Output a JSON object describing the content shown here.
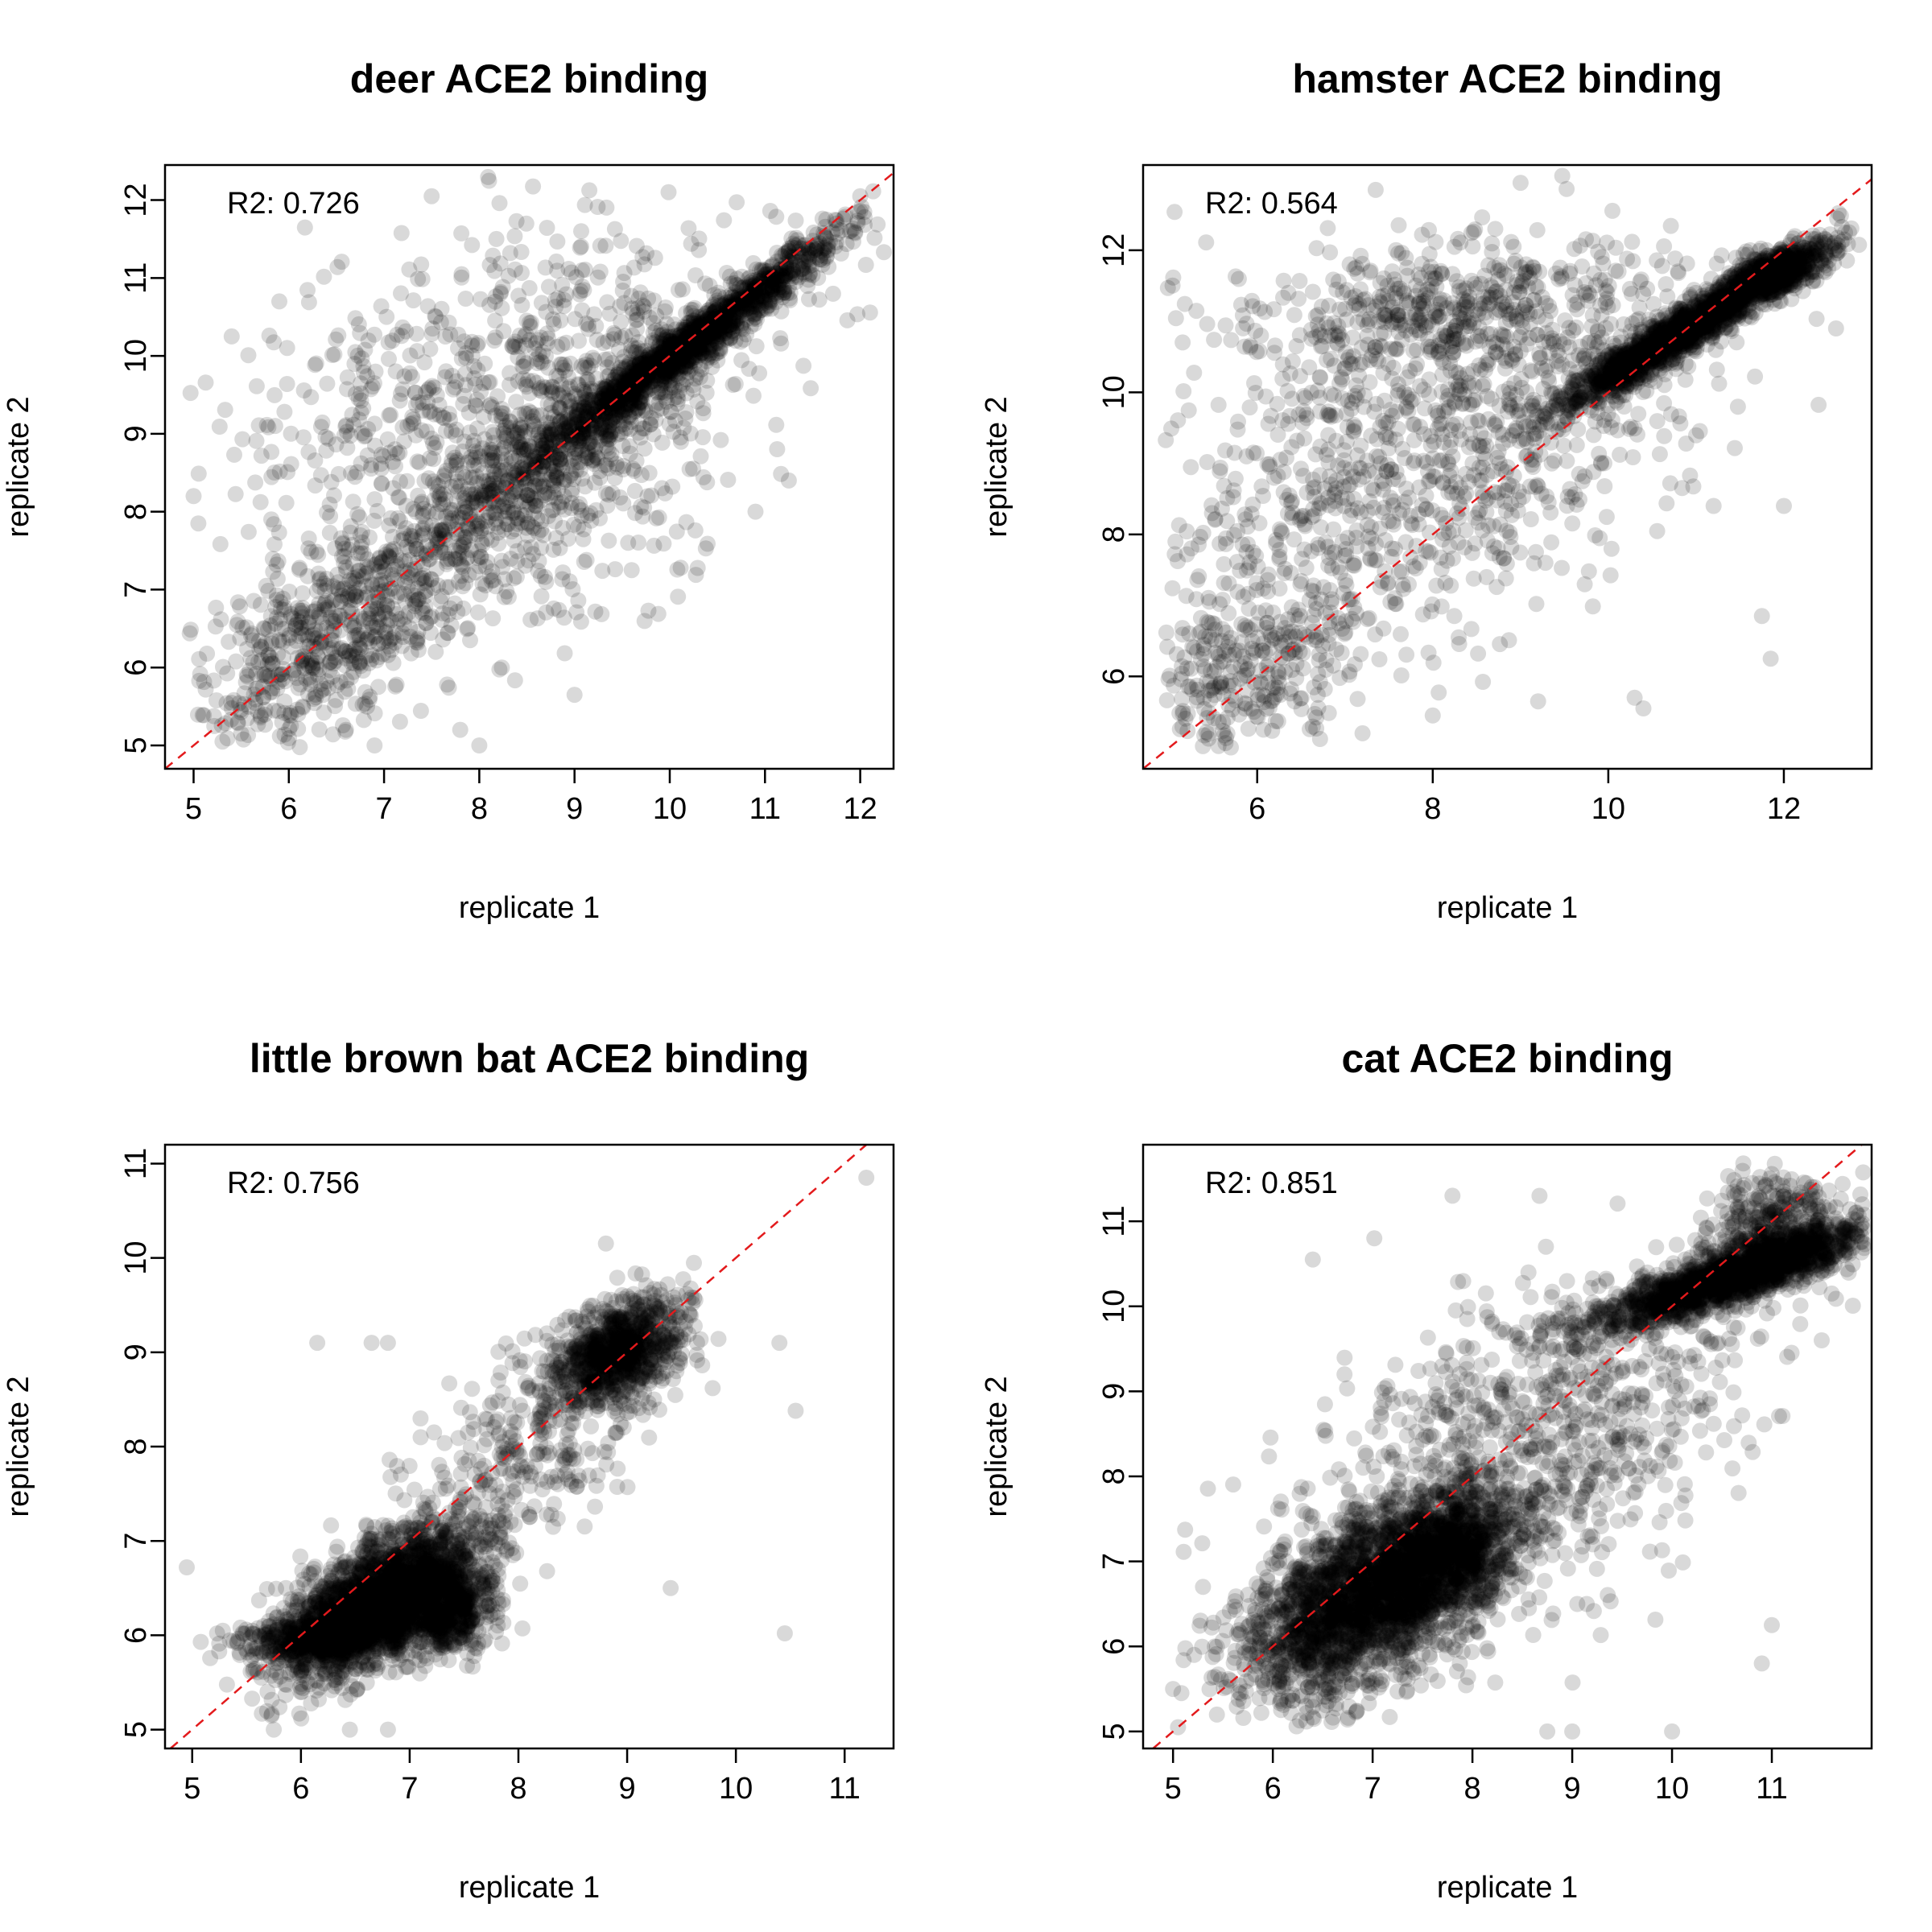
{
  "chart_data": [
    {
      "type": "scatter",
      "title": "deer ACE2 binding",
      "xlabel": "replicate 1",
      "ylabel": "replicate 2",
      "annotation": "R2: 0.726",
      "xlim": [
        4.7,
        12.35
      ],
      "ylim": [
        4.7,
        12.45
      ],
      "xticks": [
        5,
        6,
        7,
        8,
        9,
        10,
        11,
        12
      ],
      "yticks": [
        5,
        6,
        7,
        8,
        9,
        10,
        11,
        12
      ],
      "reference_line": "y = x",
      "grid": false,
      "r2": 0.726,
      "clusters": [
        {
          "cx": 10.2,
          "cy": 10.15,
          "sd_along": 1.05,
          "sd_perp": 0.12,
          "angle": 0.74,
          "n": 1500
        },
        {
          "cx": 8.6,
          "cy": 8.6,
          "sd_along": 1.3,
          "sd_perp": 0.35,
          "angle": 0.72,
          "n": 700
        },
        {
          "cx": 6.3,
          "cy": 6.3,
          "sd_along": 0.8,
          "sd_perp": 0.45,
          "angle": 0.85,
          "n": 500
        },
        {
          "cx": 8.2,
          "cy": 9.6,
          "sd_along": 1.6,
          "sd_perp": 0.85,
          "angle": 0.55,
          "n": 700
        },
        {
          "cx": 8.5,
          "cy": 7.5,
          "sd_along": 1.2,
          "sd_perp": 0.6,
          "angle": 0.6,
          "n": 250
        }
      ],
      "outliers": [
        [
          5.0,
          8.2
        ],
        [
          5.05,
          7.85
        ],
        [
          5.4,
          10.25
        ],
        [
          11.25,
          8.4
        ],
        [
          9.6,
          7.25
        ],
        [
          8.0,
          5.0
        ],
        [
          6.9,
          5.0
        ],
        [
          6.6,
          5.2
        ],
        [
          12.0,
          12.05
        ],
        [
          7.5,
          12.05
        ],
        [
          5.9,
          10.7
        ],
        [
          10.9,
          8.0
        ],
        [
          9.0,
          5.65
        ],
        [
          7.8,
          5.2
        ]
      ]
    },
    {
      "type": "scatter",
      "title": "hamster ACE2 binding",
      "xlabel": "replicate 1",
      "ylabel": "replicate 2",
      "annotation": "R2: 0.564",
      "xlim": [
        4.7,
        13.0
      ],
      "ylim": [
        4.7,
        13.2
      ],
      "xticks": [
        6,
        8,
        10,
        12
      ],
      "yticks": [
        6,
        8,
        10,
        12
      ],
      "reference_line": "y = x",
      "grid": false,
      "r2": 0.564,
      "clusters": [
        {
          "cx": 10.9,
          "cy": 10.9,
          "sd_along": 0.95,
          "sd_perp": 0.13,
          "angle": 0.66,
          "n": 1600
        },
        {
          "cx": 11.9,
          "cy": 11.7,
          "sd_along": 0.3,
          "sd_perp": 0.15,
          "angle": 0.4,
          "n": 400
        },
        {
          "cx": 8.2,
          "cy": 11.1,
          "sd_along": 1.3,
          "sd_perp": 0.5,
          "angle": 0.05,
          "n": 500
        },
        {
          "cx": 7.8,
          "cy": 9.0,
          "sd_along": 1.8,
          "sd_perp": 1.1,
          "angle": 0.6,
          "n": 1000
        },
        {
          "cx": 5.8,
          "cy": 6.0,
          "sd_along": 0.8,
          "sd_perp": 0.5,
          "angle": 0.7,
          "n": 300
        }
      ],
      "outliers": [
        [
          9.0,
          12.95
        ],
        [
          7.35,
          12.85
        ],
        [
          11.85,
          6.25
        ],
        [
          11.75,
          6.85
        ],
        [
          12.0,
          8.4
        ],
        [
          10.3,
          5.7
        ],
        [
          10.4,
          5.55
        ],
        [
          9.2,
          5.65
        ],
        [
          8.0,
          5.45
        ],
        [
          7.2,
          5.2
        ],
        [
          5.7,
          5.0
        ],
        [
          11.2,
          8.4
        ]
      ]
    },
    {
      "type": "scatter",
      "title": "little brown bat ACE2 binding",
      "xlabel": "replicate 1",
      "ylabel": "replicate 2",
      "annotation": "R2: 0.756",
      "xlim": [
        4.75,
        11.45
      ],
      "ylim": [
        4.8,
        11.2
      ],
      "xticks": [
        5,
        6,
        7,
        8,
        9,
        10,
        11
      ],
      "yticks": [
        5,
        6,
        7,
        8,
        9,
        10,
        11
      ],
      "reference_line": "y = x",
      "grid": false,
      "r2": 0.756,
      "clusters": [
        {
          "cx": 6.7,
          "cy": 6.35,
          "sd_along": 0.55,
          "sd_perp": 0.25,
          "angle": 0.7,
          "n": 2200
        },
        {
          "cx": 7.4,
          "cy": 6.3,
          "sd_along": 0.25,
          "sd_perp": 0.2,
          "angle": 1.2,
          "n": 500
        },
        {
          "cx": 6.3,
          "cy": 6.0,
          "sd_along": 0.45,
          "sd_perp": 0.1,
          "angle": 0.1,
          "n": 500
        },
        {
          "cx": 8.9,
          "cy": 9.0,
          "sd_along": 0.35,
          "sd_perp": 0.22,
          "angle": 0.7,
          "n": 900
        },
        {
          "cx": 8.1,
          "cy": 8.0,
          "sd_along": 0.7,
          "sd_perp": 0.4,
          "angle": 0.75,
          "n": 300
        }
      ],
      "outliers": [
        [
          4.95,
          6.72
        ],
        [
          5.75,
          5.0
        ],
        [
          6.45,
          5.0
        ],
        [
          6.8,
          5.0
        ],
        [
          11.2,
          10.85
        ],
        [
          10.45,
          6.02
        ],
        [
          10.55,
          8.38
        ],
        [
          6.15,
          9.1
        ],
        [
          6.65,
          9.1
        ],
        [
          6.8,
          9.1
        ],
        [
          9.4,
          6.5
        ],
        [
          10.4,
          9.1
        ]
      ]
    },
    {
      "type": "scatter",
      "title": "cat ACE2 binding",
      "xlabel": "replicate 1",
      "ylabel": "replicate 2",
      "annotation": "R2: 0.851",
      "xlim": [
        4.7,
        12.0
      ],
      "ylim": [
        4.8,
        11.9
      ],
      "xticks": [
        5,
        6,
        7,
        8,
        9,
        10,
        11
      ],
      "yticks": [
        5,
        6,
        7,
        8,
        9,
        10,
        11
      ],
      "reference_line": "y = x",
      "grid": false,
      "r2": 0.851,
      "clusters": [
        {
          "cx": 7.0,
          "cy": 6.6,
          "sd_along": 0.75,
          "sd_perp": 0.4,
          "angle": 0.7,
          "n": 2600
        },
        {
          "cx": 7.8,
          "cy": 7.1,
          "sd_along": 0.4,
          "sd_perp": 0.3,
          "angle": 1.0,
          "n": 600
        },
        {
          "cx": 10.6,
          "cy": 10.35,
          "sd_along": 0.75,
          "sd_perp": 0.14,
          "angle": 0.38,
          "n": 1700
        },
        {
          "cx": 11.0,
          "cy": 10.9,
          "sd_along": 0.35,
          "sd_perp": 0.3,
          "angle": 1.0,
          "n": 400
        },
        {
          "cx": 8.5,
          "cy": 8.3,
          "sd_along": 1.3,
          "sd_perp": 0.8,
          "angle": 0.7,
          "n": 900
        }
      ],
      "outliers": [
        [
          5.0,
          5.5
        ],
        [
          5.05,
          5.05
        ],
        [
          8.75,
          5.0
        ],
        [
          9.0,
          5.0
        ],
        [
          10.0,
          5.0
        ],
        [
          10.9,
          5.8
        ],
        [
          11.0,
          6.25
        ],
        [
          11.6,
          10.15
        ],
        [
          7.8,
          11.3
        ],
        [
          6.4,
          10.55
        ],
        [
          5.3,
          6.7
        ],
        [
          11.5,
          9.6
        ]
      ]
    }
  ]
}
